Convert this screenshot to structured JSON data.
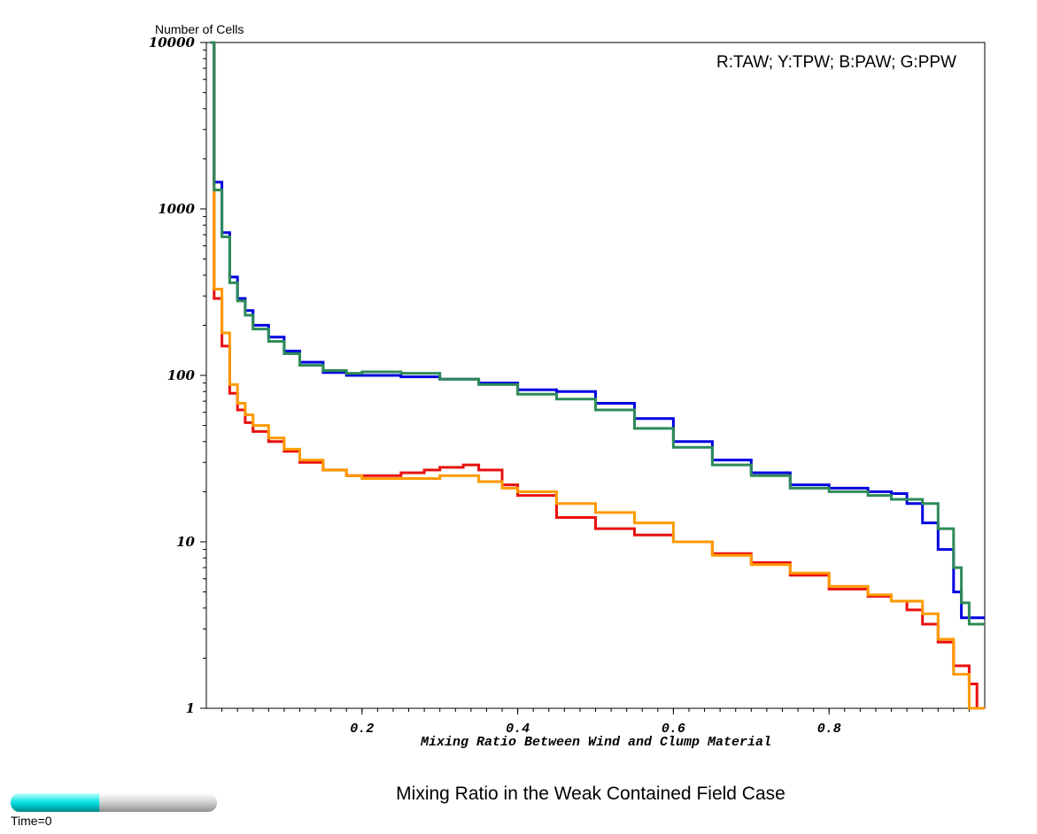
{
  "title": "Mixing Ratio in the Weak Contained Field Case",
  "time_label": "Time=0",
  "time_slider": {
    "progress": 0.43,
    "fill_color": "#00e0e0",
    "track_color": "#d8d8d8"
  },
  "chart_data": {
    "type": "line",
    "step": true,
    "xlabel": "Mixing Ratio Between Wind and Clump Material",
    "ylabel": "Number of Cells",
    "xlim": [
      0,
      1
    ],
    "ylim": [
      1,
      10000
    ],
    "yscale": "log",
    "xticks": [
      0.2,
      0.4,
      0.6,
      0.8
    ],
    "xtick_labels": [
      "0.2",
      "0.4",
      "0.6",
      "0.8"
    ],
    "yticks": [
      1,
      10,
      100,
      1000,
      10000
    ],
    "ytick_labels": [
      "1",
      "10",
      "100",
      "1000",
      "10000"
    ],
    "legend_text": "R:TAW; Y:TPW; B:PAW; G:PPW",
    "legend_position": "top-right",
    "grid": false,
    "series": [
      {
        "name": "R",
        "color": "#e81010",
        "x": [
          0.01,
          0.02,
          0.03,
          0.04,
          0.05,
          0.06,
          0.08,
          0.1,
          0.12,
          0.15,
          0.18,
          0.2,
          0.25,
          0.28,
          0.3,
          0.33,
          0.35,
          0.38,
          0.4,
          0.45,
          0.5,
          0.55,
          0.6,
          0.65,
          0.7,
          0.75,
          0.8,
          0.85,
          0.88,
          0.9,
          0.92,
          0.94,
          0.96,
          0.98,
          0.99
        ],
        "y": [
          290,
          150,
          78,
          62,
          52,
          46,
          40,
          35,
          30,
          27,
          25,
          25,
          26,
          27,
          28,
          29,
          27,
          22,
          19,
          14,
          12,
          11,
          10,
          8.5,
          7.5,
          6.3,
          5.2,
          4.7,
          4.4,
          3.9,
          3.2,
          2.5,
          1.8,
          1.4,
          1.0
        ]
      },
      {
        "name": "Y",
        "color": "#ff9a00",
        "x": [
          0.01,
          0.02,
          0.03,
          0.04,
          0.05,
          0.06,
          0.08,
          0.1,
          0.12,
          0.15,
          0.18,
          0.2,
          0.25,
          0.3,
          0.35,
          0.38,
          0.4,
          0.45,
          0.5,
          0.55,
          0.6,
          0.65,
          0.7,
          0.75,
          0.8,
          0.85,
          0.88,
          0.9,
          0.92,
          0.94,
          0.96,
          0.98
        ],
        "y": [
          330,
          180,
          88,
          68,
          58,
          50,
          42,
          36,
          31,
          27,
          25,
          24,
          24,
          25,
          23,
          21,
          20,
          17,
          15,
          13,
          10,
          8.3,
          7.3,
          6.5,
          5.4,
          4.8,
          4.4,
          4.4,
          3.7,
          2.6,
          1.6,
          1.0
        ]
      },
      {
        "name": "B",
        "color": "#0000e0",
        "x": [
          0.01,
          0.02,
          0.03,
          0.04,
          0.05,
          0.06,
          0.08,
          0.1,
          0.12,
          0.15,
          0.18,
          0.2,
          0.25,
          0.3,
          0.35,
          0.4,
          0.45,
          0.5,
          0.55,
          0.6,
          0.65,
          0.7,
          0.75,
          0.8,
          0.85,
          0.88,
          0.9,
          0.92,
          0.94,
          0.96,
          0.97,
          0.98,
          0.99
        ],
        "y": [
          1450,
          720,
          390,
          290,
          245,
          200,
          170,
          140,
          120,
          104,
          100,
          100,
          98,
          95,
          90,
          82,
          80,
          68,
          55,
          40,
          31,
          26,
          22,
          21,
          20,
          19.5,
          17,
          13,
          9,
          5,
          3.5,
          3.5,
          3.5
        ]
      },
      {
        "name": "G",
        "color": "#2e8b57",
        "x": [
          0.005,
          0.01,
          0.02,
          0.03,
          0.04,
          0.05,
          0.06,
          0.08,
          0.1,
          0.12,
          0.15,
          0.18,
          0.2,
          0.25,
          0.3,
          0.35,
          0.4,
          0.45,
          0.5,
          0.55,
          0.6,
          0.65,
          0.7,
          0.75,
          0.8,
          0.85,
          0.88,
          0.9,
          0.92,
          0.94,
          0.96,
          0.97,
          0.98,
          0.99
        ],
        "y": [
          10000,
          1300,
          680,
          360,
          280,
          230,
          190,
          160,
          135,
          115,
          107,
          103,
          105,
          103,
          95,
          88,
          77,
          72,
          62,
          48,
          37,
          29,
          25,
          21,
          20,
          19,
          18,
          18,
          17,
          12,
          7,
          4.3,
          3.2,
          3.2
        ]
      }
    ]
  }
}
